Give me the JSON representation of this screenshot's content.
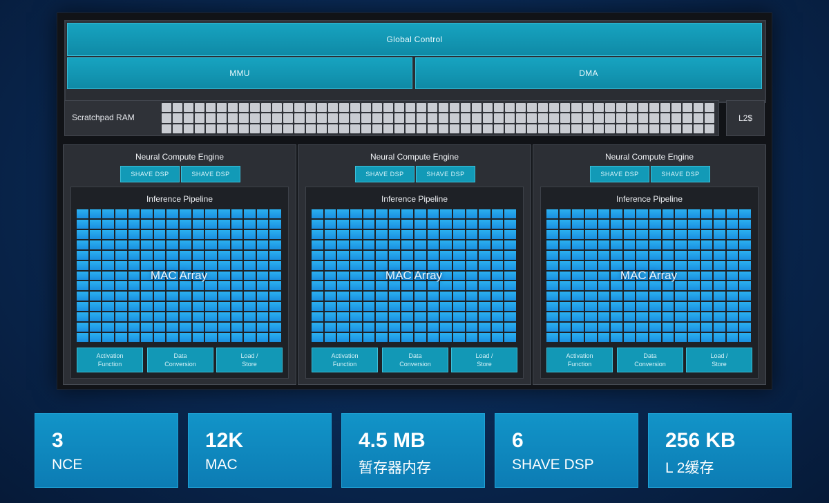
{
  "top": {
    "global_control": "Global Control",
    "mmu": "MMU",
    "dma": "DMA"
  },
  "memory": {
    "scratchpad_label": "Scratchpad RAM",
    "l2_label": "L2$"
  },
  "nce_blocks": [
    {
      "title": "Neural Compute Engine",
      "shave": [
        "SHAVE DSP",
        "SHAVE DSP"
      ],
      "pipeline_title": "Inference Pipeline",
      "mac_label": "MAC Array",
      "functions": [
        "Activation\nFunction",
        "Data\nConversion",
        "Load /\nStore"
      ]
    },
    {
      "title": "Neural Compute Engine",
      "shave": [
        "SHAVE DSP",
        "SHAVE DSP"
      ],
      "pipeline_title": "Inference Pipeline",
      "mac_label": "MAC Array",
      "functions": [
        "Activation\nFunction",
        "Data\nConversion",
        "Load /\nStore"
      ]
    },
    {
      "title": "Neural Compute Engine",
      "shave": [
        "SHAVE DSP",
        "SHAVE DSP"
      ],
      "pipeline_title": "Inference Pipeline",
      "mac_label": "MAC Array",
      "functions": [
        "Activation\nFunction",
        "Data\nConversion",
        "Load /\nStore"
      ]
    }
  ],
  "stats": [
    {
      "value": "3",
      "label": "NCE"
    },
    {
      "value": "12K",
      "label": "MAC"
    },
    {
      "value": "4.5 MB",
      "label": "暂存器内存"
    },
    {
      "value": "6",
      "label": "SHAVE DSP"
    },
    {
      "value": "256 KB",
      "label": "L 2缓存"
    }
  ],
  "colors": {
    "teal_block": "#17a3c0",
    "mac_cell": "#2bb0f0",
    "stat_box": "#1294c8",
    "background": "#0a2a55"
  }
}
